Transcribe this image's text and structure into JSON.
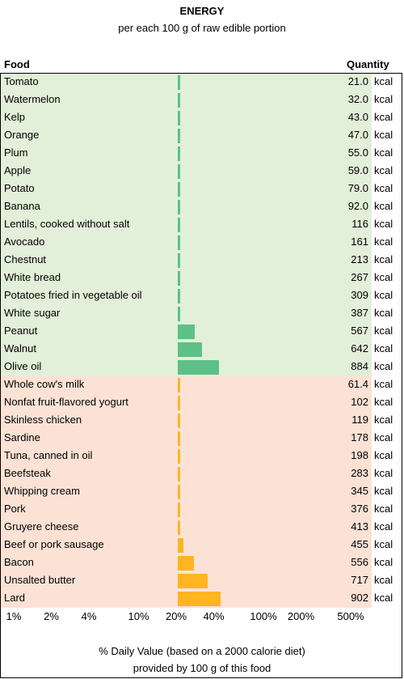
{
  "chart_data": {
    "type": "bar",
    "title": "ENERGY",
    "subtitle": "per each 100 g of raw edible portion",
    "header_food": "Food",
    "header_quantity": "Quantity",
    "unit": "kcal",
    "xlabel_line1": "% Daily Value (based on a 2000 calorie diet)",
    "xlabel_line2": "provided by 100 g of this food",
    "x_scale": "log",
    "x_ticks": [
      "1%",
      "2%",
      "4%",
      "10%",
      "20%",
      "40%",
      "100%",
      "200%",
      "500%"
    ],
    "colors": {
      "plant_bar": "#5cc186",
      "plant_bg": "#e2efd9",
      "animal_bar": "#ffb51f",
      "animal_bg": "#fbe2d5"
    },
    "series": [
      {
        "group": "plant",
        "categories": [
          "Tomato",
          "Watermelon",
          "Kelp",
          "Orange",
          "Plum",
          "Apple",
          "Potato",
          "Banana",
          "Lentils, cooked without salt",
          "Avocado",
          "Chestnut",
          "White bread",
          "Potatoes fried in vegetable oil",
          "White sugar",
          "Peanut",
          "Walnut",
          "Olive oil"
        ],
        "value_labels": [
          "21.0",
          "32.0",
          "43.0",
          "47.0",
          "55.0",
          "59.0",
          "79.0",
          "92.0",
          "116",
          "161",
          "213",
          "267",
          "309",
          "387",
          "567",
          "642",
          "884"
        ],
        "values": [
          21.0,
          32.0,
          43.0,
          47.0,
          55.0,
          59.0,
          79.0,
          92.0,
          116,
          161,
          213,
          267,
          309,
          387,
          567,
          642,
          884
        ]
      },
      {
        "group": "animal",
        "categories": [
          "Whole cow's milk",
          "Nonfat fruit-flavored yogurt",
          "Skinless chicken",
          "Sardine",
          "Tuna, canned in oil",
          "Beefsteak",
          "Whipping cream",
          "Pork",
          "Gruyere cheese",
          "Beef or pork sausage",
          "Bacon",
          "Unsalted butter",
          "Lard"
        ],
        "value_labels": [
          "61.4",
          "102",
          "119",
          "178",
          "198",
          "283",
          "345",
          "376",
          "413",
          "455",
          "556",
          "717",
          "902"
        ],
        "values": [
          61.4,
          102,
          119,
          178,
          198,
          283,
          345,
          376,
          413,
          455,
          556,
          717,
          902
        ]
      }
    ]
  }
}
